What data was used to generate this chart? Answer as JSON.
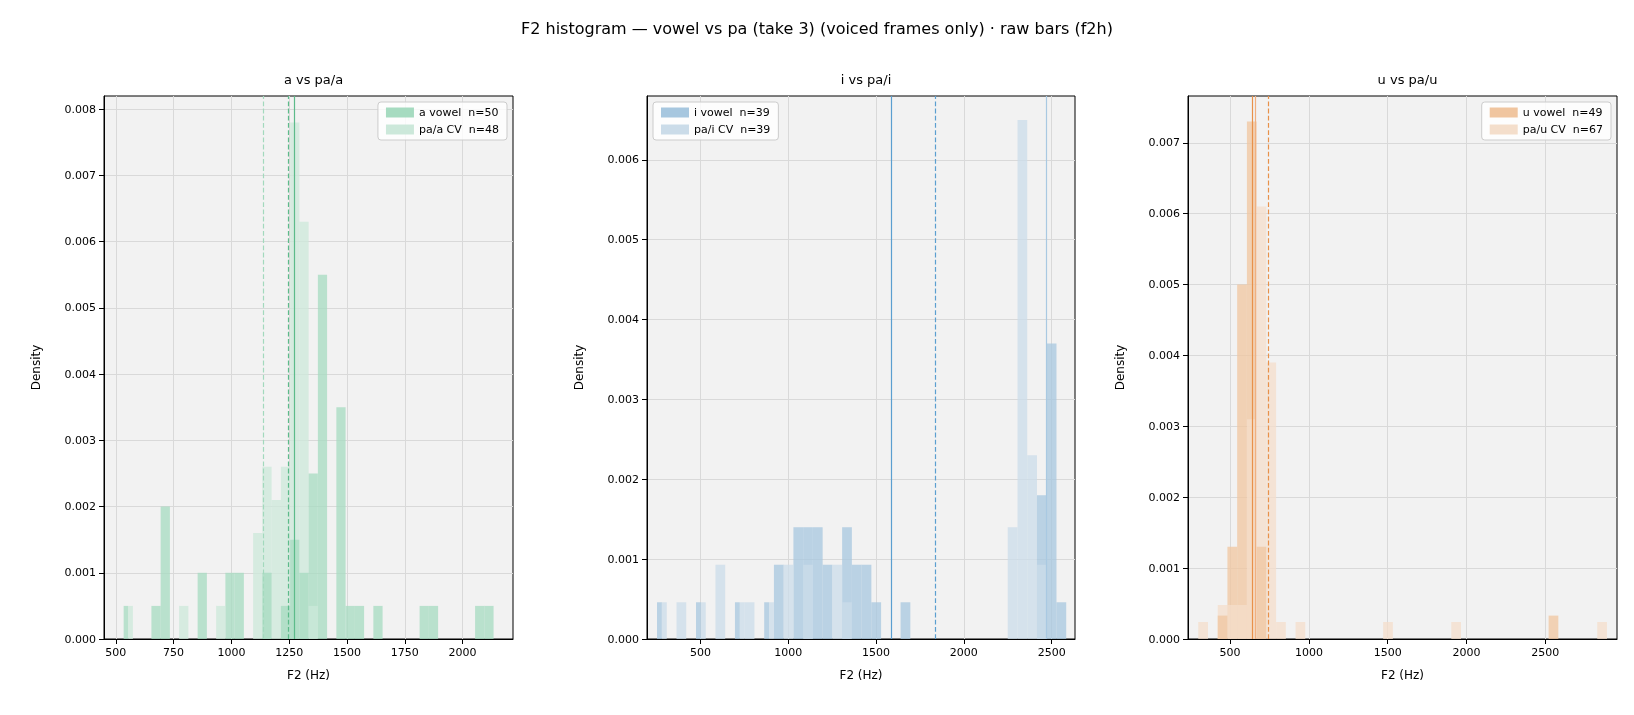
{
  "chart_data": [
    {
      "type": "histogram",
      "title": "a vs pa/a",
      "xlabel": "F2 (Hz)",
      "ylabel": "Density",
      "annotations": [
        "F2 histogram — vowel vs pa (take 3) (voiced frames only) · raw bars (f2h)"
      ],
      "xlim": [
        449,
        2218
      ],
      "xticks": [
        500,
        750,
        1000,
        1250,
        1500,
        1750,
        2000
      ],
      "ylim": [
        0,
        0.0082
      ],
      "yticks": [
        {
          "value": 0,
          "label": "0.000"
        },
        {
          "value": 0.001,
          "label": "0.001"
        },
        {
          "value": 0.002,
          "label": "0.002"
        },
        {
          "value": 0.003,
          "label": "0.003"
        },
        {
          "value": 0.004,
          "label": "0.004"
        },
        {
          "value": 0.005,
          "label": "0.005"
        },
        {
          "value": 0.006,
          "label": "0.006"
        },
        {
          "value": 0.007,
          "label": "0.007"
        },
        {
          "value": 0.008,
          "label": "0.008"
        }
      ],
      "grid": true,
      "legend": "upper right",
      "bins": [
        534,
        574,
        614,
        654,
        694,
        734,
        774,
        814,
        854,
        894,
        934,
        974,
        1014,
        1054,
        1094,
        1134,
        1174,
        1214,
        1254,
        1294,
        1334,
        1374,
        1414,
        1454,
        1494,
        1534,
        1574,
        1614,
        1654,
        1694,
        1734,
        1774,
        1814,
        1854,
        1894,
        1934,
        1974,
        2014,
        2054,
        2094,
        2134
      ],
      "series": [
        {
          "name": "a vowel  n=50",
          "color": "#a6dbc0",
          "values": [
            0.0005,
            0,
            0,
            0.0005,
            0.002,
            0,
            0,
            0,
            0.001,
            0,
            0,
            0.001,
            0.001,
            0,
            0,
            0.001,
            0,
            0.0005,
            0.0015,
            0.001,
            0.0025,
            0.0055,
            0,
            0.0035,
            0.0005,
            0.0005,
            0,
            0.0005,
            0,
            0,
            0,
            0,
            0.0005,
            0.0005,
            0,
            0,
            0,
            0,
            0.0005,
            0.0005
          ]
        },
        {
          "name": "pa/a CV  n=48",
          "color": "#cce8da",
          "values": [
            0.0005,
            0,
            0,
            0,
            0,
            0,
            0.0005,
            0,
            0,
            0,
            0.0005,
            0,
            0,
            0,
            0.0016,
            0.0026,
            0.0021,
            0.0026,
            0.0078,
            0.0063,
            0.0005,
            0,
            0,
            0,
            0,
            0,
            0,
            0,
            0,
            0,
            0,
            0,
            0,
            0,
            0,
            0,
            0,
            0,
            0,
            0
          ]
        }
      ],
      "ref_lines": [
        {
          "axis": "x",
          "value": 1137,
          "color": "#a3d9bd",
          "line_style": "dashed"
        },
        {
          "axis": "x",
          "value": 1244,
          "color": "#5dbb8a",
          "line_style": "dashed"
        },
        {
          "axis": "x",
          "value": 1274,
          "color": "#5dbb8a",
          "line_style": "solid"
        }
      ]
    },
    {
      "type": "histogram",
      "title": "i vs pa/i",
      "xlabel": "F2 (Hz)",
      "ylabel": "Density",
      "xlim": [
        195,
        2633
      ],
      "xticks": [
        500,
        1000,
        1500,
        2000,
        2500
      ],
      "ylim": [
        0,
        0.0068
      ],
      "yticks": [
        {
          "value": 0,
          "label": "0.000"
        },
        {
          "value": 0.001,
          "label": "0.001"
        },
        {
          "value": 0.002,
          "label": "0.002"
        },
        {
          "value": 0.003,
          "label": "0.003"
        },
        {
          "value": 0.004,
          "label": "0.004"
        },
        {
          "value": 0.005,
          "label": "0.005"
        },
        {
          "value": 0.006,
          "label": "0.006"
        }
      ],
      "grid": true,
      "legend": "upper left",
      "bins": [
        252,
        307.5,
        363,
        418.5,
        474,
        529.5,
        585,
        640.5,
        696,
        751.5,
        807,
        862.5,
        918,
        973.5,
        1029,
        1084.5,
        1140,
        1195.5,
        1251,
        1306.5,
        1362,
        1417.5,
        1473,
        1528.5,
        1584,
        1639.5,
        1695,
        1750.5,
        1806,
        1861.5,
        1917,
        1972.5,
        2028,
        2083.5,
        2139,
        2194.5,
        2250,
        2305.5,
        2361,
        2416.5,
        2472,
        2527.5,
        2583
      ],
      "series": [
        {
          "name": "i vowel  n=39",
          "color": "#a7c7df",
          "values": [
            0.00046,
            0,
            0,
            0,
            0.00046,
            0,
            0,
            0,
            0.00046,
            0,
            0,
            0.00046,
            0.00093,
            0,
            0.0014,
            0.0014,
            0.0014,
            0.00093,
            0,
            0.0014,
            0.00093,
            0.00093,
            0.00046,
            0,
            0,
            0.00046,
            0,
            0,
            0,
            0,
            0,
            0,
            0,
            0,
            0,
            0,
            0,
            0,
            0,
            0.0018,
            0.0037,
            0.00046
          ]
        },
        {
          "name": "pa/i CV  n=39",
          "color": "#cbdce9",
          "values": [
            0.00046,
            0,
            0.00046,
            0,
            0.00046,
            0,
            0.00093,
            0,
            0.00046,
            0.00046,
            0,
            0.00046,
            0,
            0.00093,
            0,
            0.00093,
            0,
            0,
            0.00093,
            0.00046,
            0,
            0,
            0,
            0,
            0,
            0,
            0,
            0,
            0,
            0,
            0,
            0,
            0,
            0,
            0,
            0,
            0.0014,
            0.0065,
            0.0023,
            0.00093,
            0,
            0
          ]
        }
      ],
      "ref_lines": [
        {
          "axis": "x",
          "value": 1585,
          "color": "#5b9fd0",
          "line_style": "solid"
        },
        {
          "axis": "x",
          "value": 1839,
          "color": "#5b9fd0",
          "line_style": "dashed"
        },
        {
          "axis": "x",
          "value": 2470,
          "color": "#a9c9e2",
          "line_style": "solid"
        }
      ]
    },
    {
      "type": "histogram",
      "title": "u vs pa/u",
      "xlabel": "F2 (Hz)",
      "ylabel": "Density",
      "xlim": [
        233,
        2955
      ],
      "xticks": [
        500,
        1000,
        1500,
        2000,
        2500
      ],
      "ylim": [
        0,
        0.00766
      ],
      "yticks": [
        {
          "value": 0,
          "label": "0.000"
        },
        {
          "value": 0.001,
          "label": "0.001"
        },
        {
          "value": 0.002,
          "label": "0.002"
        },
        {
          "value": 0.003,
          "label": "0.003"
        },
        {
          "value": 0.004,
          "label": "0.004"
        },
        {
          "value": 0.005,
          "label": "0.005"
        },
        {
          "value": 0.006,
          "label": "0.006"
        },
        {
          "value": 0.007,
          "label": "0.007"
        }
      ],
      "grid": true,
      "legend": "upper right",
      "bins": [
        298,
        359.75,
        421.5,
        483.25,
        545,
        606.75,
        668.5,
        730.25,
        792,
        853.75,
        915.5,
        977.25,
        1039,
        1100.75,
        1162.5,
        1224.25,
        1286,
        1347.75,
        1409.5,
        1471.25,
        1533,
        1594.75,
        1656.5,
        1718.25,
        1780,
        1841.75,
        1903.5,
        1965.25,
        2027,
        2088.75,
        2150.5,
        2212.25,
        2274,
        2335.75,
        2397.5,
        2459.25,
        2521,
        2582.75,
        2644.5,
        2706.25,
        2768,
        2829.75,
        2891.5
      ],
      "series": [
        {
          "name": "u vowel  n=49",
          "color": "#f0c59f",
          "values": [
            0,
            0,
            0.00033,
            0.0013,
            0.005,
            0.0073,
            0.0013,
            0,
            0,
            0,
            0,
            0,
            0,
            0,
            0,
            0,
            0,
            0,
            0,
            0,
            0,
            0,
            0,
            0,
            0,
            0,
            0,
            0,
            0,
            0,
            0,
            0,
            0,
            0,
            0,
            0,
            0.00033,
            0,
            0,
            0,
            0,
            0
          ]
        },
        {
          "name": "pa/u CV  n=67",
          "color": "#f4decb",
          "values": [
            0.00024,
            0,
            0.00048,
            0.00048,
            0.00048,
            0.0031,
            0.0061,
            0.0039,
            0.00024,
            0,
            0.00024,
            0,
            0,
            0,
            0,
            0,
            0,
            0,
            0,
            0.00024,
            0,
            0,
            0,
            0,
            0,
            0,
            0.00024,
            0,
            0,
            0,
            0,
            0,
            0,
            0,
            0,
            0,
            0,
            0,
            0,
            0,
            0,
            0.00024
          ]
        }
      ],
      "ref_lines": [
        {
          "axis": "x",
          "value": 642,
          "color": "#e8914a",
          "line_style": "solid"
        },
        {
          "axis": "x",
          "value": 658,
          "color": "#f0b080",
          "line_style": "solid"
        },
        {
          "axis": "x",
          "value": 740,
          "color": "#e8914a",
          "line_style": "dashed"
        }
      ]
    }
  ]
}
